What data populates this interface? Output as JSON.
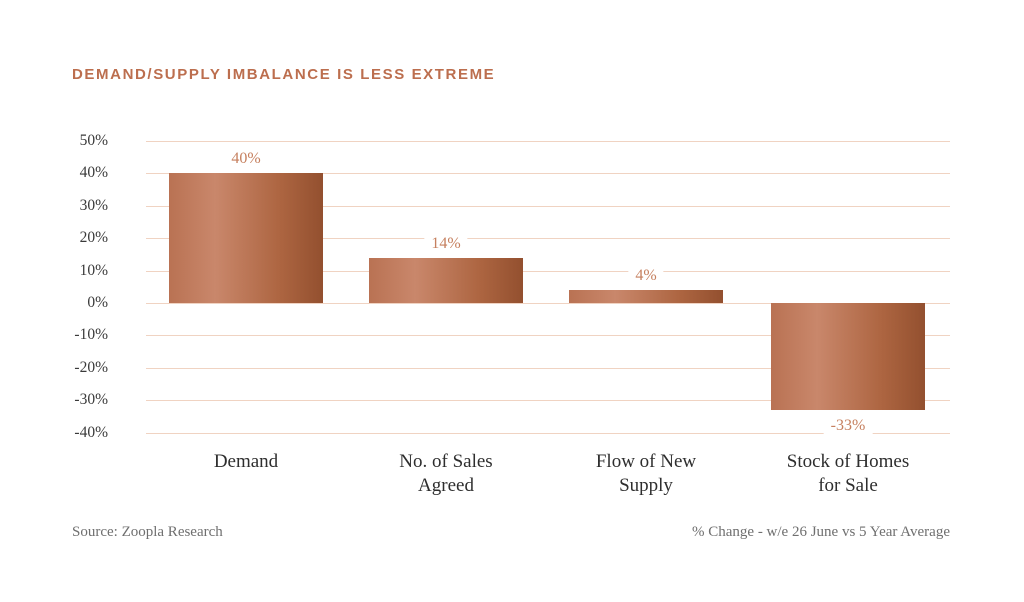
{
  "header": {
    "title": "DEMAND/SUPPLY IMBALANCE IS LESS EXTREME"
  },
  "chart_data": {
    "type": "bar",
    "title": "DEMAND/SUPPLY IMBALANCE IS LESS EXTREME",
    "categories": [
      "Demand",
      "No. of Sales Agreed",
      "Flow of New Supply",
      "Stock of Homes for Sale"
    ],
    "categories_wrapped": [
      [
        "Demand"
      ],
      [
        "No. of Sales",
        "Agreed"
      ],
      [
        "Flow of New",
        "Supply"
      ],
      [
        "Stock of Homes",
        "for Sale"
      ]
    ],
    "values": [
      40,
      14,
      4,
      -33
    ],
    "value_labels": [
      "40%",
      "14%",
      "4%",
      "-33%"
    ],
    "y_ticks": [
      {
        "label": "50%",
        "value": 50
      },
      {
        "label": "40%",
        "value": 40
      },
      {
        "label": "30%",
        "value": 30
      },
      {
        "label": "20%",
        "value": 20
      },
      {
        "label": "10%",
        "value": 10
      },
      {
        "label": "0%",
        "value": 0
      },
      {
        "label": "-10%",
        "value": -10
      },
      {
        "label": "-20%",
        "value": -20
      },
      {
        "label": "-30%",
        "value": -30
      },
      {
        "label": "-40%",
        "value": -40
      }
    ],
    "ylim": [
      -40,
      50
    ],
    "xlabel": "",
    "ylabel": "",
    "grid": "horizontal",
    "legend": "none"
  },
  "footer": {
    "source": "Source: Zoopla Research",
    "note": "% Change - w/e 26 June vs 5 Year Average"
  },
  "colors": {
    "accent": "#bc6e4e",
    "value_label": "#c6805f",
    "gridline": "#f0d3c2",
    "axis_text": "#3a3a3a",
    "category_text": "#2e2e2e",
    "footer_text": "#6f6f6f",
    "bar_gradient": [
      "#b97253",
      "#c9876b",
      "#ad6541",
      "#93502f"
    ]
  }
}
